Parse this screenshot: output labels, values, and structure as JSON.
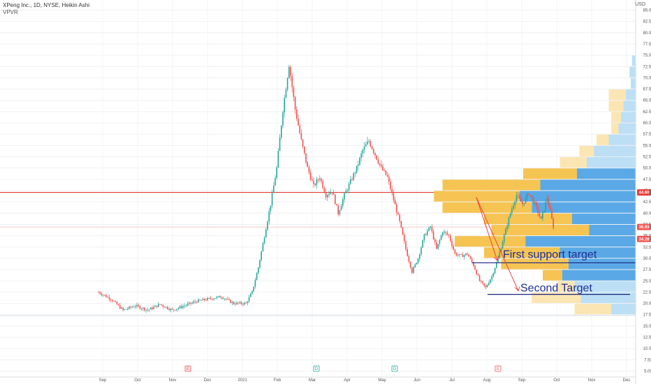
{
  "header": {
    "title": "XPeng Inc., 1D, NYSE, Heikin Ashi",
    "indicator": "VPVR",
    "currency": "USD"
  },
  "colors": {
    "up": "#26a69a",
    "down": "#ef5350",
    "resistance": "#e53935",
    "support": "#1a237e",
    "vp_up_hi": "#5aa9e6",
    "vp_up_lo": "#bcdff5",
    "vp_down_hi": "#f6c453",
    "vp_down_lo": "#fbe6b3",
    "annotation": "#1f2d8f",
    "arrow": "#e53935"
  },
  "chart_data": {
    "type": "candlestick",
    "x_labels": [
      "Sep",
      "Oct",
      "Nov",
      "Dec",
      "2021",
      "Feb",
      "Mar",
      "Apr",
      "May",
      "Jun",
      "Jul",
      "Aug",
      "Sep",
      "Oct",
      "Nov",
      "Dec"
    ],
    "y_ticks": [
      "5.00",
      "7.50",
      "10.00",
      "12.50",
      "15.00",
      "17.50",
      "20.00",
      "22.50",
      "25.00",
      "27.50",
      "30.00",
      "32.50",
      "35.00",
      "37.50",
      "40.00",
      "42.50",
      "45.00",
      "47.50",
      "50.00",
      "52.50",
      "55.00",
      "57.50",
      "60.00",
      "62.50",
      "65.00",
      "67.50",
      "70.00",
      "72.50",
      "75.00",
      "77.50",
      "80.00",
      "82.50",
      "85.00"
    ],
    "ylim": [
      4,
      86
    ],
    "price_path": [
      [
        0,
        22.5
      ],
      [
        2,
        21.0
      ],
      [
        4,
        18.5
      ],
      [
        6,
        19.5
      ],
      [
        8,
        18.5
      ],
      [
        10,
        19.8
      ],
      [
        12,
        18.5
      ],
      [
        14,
        19.5
      ],
      [
        16,
        20.5
      ],
      [
        18,
        21.0
      ],
      [
        20,
        21.5
      ],
      [
        22,
        20.0
      ],
      [
        24,
        20.0
      ],
      [
        25,
        22.5
      ],
      [
        26,
        28.0
      ],
      [
        27,
        35.0
      ],
      [
        28,
        42.0
      ],
      [
        29,
        50.0
      ],
      [
        30,
        63.0
      ],
      [
        31,
        73.0
      ],
      [
        32,
        63.0
      ],
      [
        33,
        56.0
      ],
      [
        34,
        50.0
      ],
      [
        35,
        46.0
      ],
      [
        36,
        48.0
      ],
      [
        37,
        44.0
      ],
      [
        38,
        45.0
      ],
      [
        39,
        40.0
      ],
      [
        40,
        44.0
      ],
      [
        41,
        47.0
      ],
      [
        42,
        50.0
      ],
      [
        43,
        54.0
      ],
      [
        44,
        56.0
      ],
      [
        45,
        53.0
      ],
      [
        46,
        50.0
      ],
      [
        47,
        48.0
      ],
      [
        48,
        43.0
      ],
      [
        49,
        38.0
      ],
      [
        50,
        32.0
      ],
      [
        51,
        27.0
      ],
      [
        52,
        30.0
      ],
      [
        53,
        35.0
      ],
      [
        54,
        37.0
      ],
      [
        55,
        32.0
      ],
      [
        56,
        36.0
      ],
      [
        57,
        35.0
      ],
      [
        58,
        31.0
      ],
      [
        59,
        30.5
      ],
      [
        60,
        31.0
      ],
      [
        61,
        28.5
      ],
      [
        62,
        25.0
      ],
      [
        63,
        23.5
      ],
      [
        64,
        26.0
      ],
      [
        65,
        30.0
      ],
      [
        66,
        35.0
      ],
      [
        67,
        40.0
      ],
      [
        68,
        44.0
      ],
      [
        69,
        42.0
      ],
      [
        70,
        44.5
      ],
      [
        71,
        42.0
      ],
      [
        72,
        38.5
      ],
      [
        73,
        43.5
      ],
      [
        74,
        37.0
      ]
    ],
    "levels": [
      {
        "name": "resistance",
        "value": 44.6,
        "label": "44.60"
      },
      {
        "name": "current",
        "value": 36.93,
        "label": "36.93"
      },
      {
        "name": "marker",
        "value": 34.28,
        "label": "34.28"
      },
      {
        "name": "base",
        "value": 17.3,
        "label": ""
      }
    ],
    "annotations": [
      {
        "text": "First support target",
        "line_value": 29.0,
        "arrow_to": 29.5
      },
      {
        "text": "Second Target",
        "line_value": 22.0,
        "arrow_to": 22.8
      }
    ],
    "volume_profile": [
      {
        "price": 73.75,
        "up": 3,
        "down": 0
      },
      {
        "price": 71.25,
        "up": 5,
        "down": 0
      },
      {
        "price": 68.75,
        "up": 4,
        "down": 0
      },
      {
        "price": 66.25,
        "up": 8,
        "down": 14
      },
      {
        "price": 63.75,
        "up": 10,
        "down": 12
      },
      {
        "price": 61.25,
        "up": 12,
        "down": 8
      },
      {
        "price": 58.75,
        "up": 14,
        "down": 6
      },
      {
        "price": 56.25,
        "up": 22,
        "down": 10
      },
      {
        "price": 53.75,
        "up": 34,
        "down": 12
      },
      {
        "price": 51.25,
        "up": 40,
        "down": 22
      },
      {
        "price": 48.75,
        "up": 48,
        "down": 44
      },
      {
        "price": 46.25,
        "up": 78,
        "down": 80
      },
      {
        "price": 43.75,
        "up": 95,
        "down": 70
      },
      {
        "price": 41.25,
        "up": 85,
        "down": 73
      },
      {
        "price": 38.75,
        "up": 52,
        "down": 72
      },
      {
        "price": 36.25,
        "up": 38,
        "down": 80
      },
      {
        "price": 33.75,
        "up": 90,
        "down": 58
      },
      {
        "price": 31.25,
        "up": 62,
        "down": 62
      },
      {
        "price": 28.75,
        "up": 55,
        "down": 55
      },
      {
        "price": 26.25,
        "up": 60,
        "down": 16
      },
      {
        "price": 23.75,
        "up": 50,
        "down": 14
      },
      {
        "price": 21.25,
        "up": 45,
        "down": 40
      },
      {
        "price": 18.75,
        "up": 20,
        "down": 30
      }
    ],
    "events": [
      {
        "label": "E",
        "x": 24.5,
        "kind": "earnings-red"
      },
      {
        "label": "D",
        "x": 46.5,
        "kind": "dividend-green"
      },
      {
        "label": "D",
        "x": 62.8,
        "kind": "dividend-green"
      },
      {
        "label": "E",
        "x": 82.5,
        "kind": "earnings-red-outline"
      }
    ]
  }
}
